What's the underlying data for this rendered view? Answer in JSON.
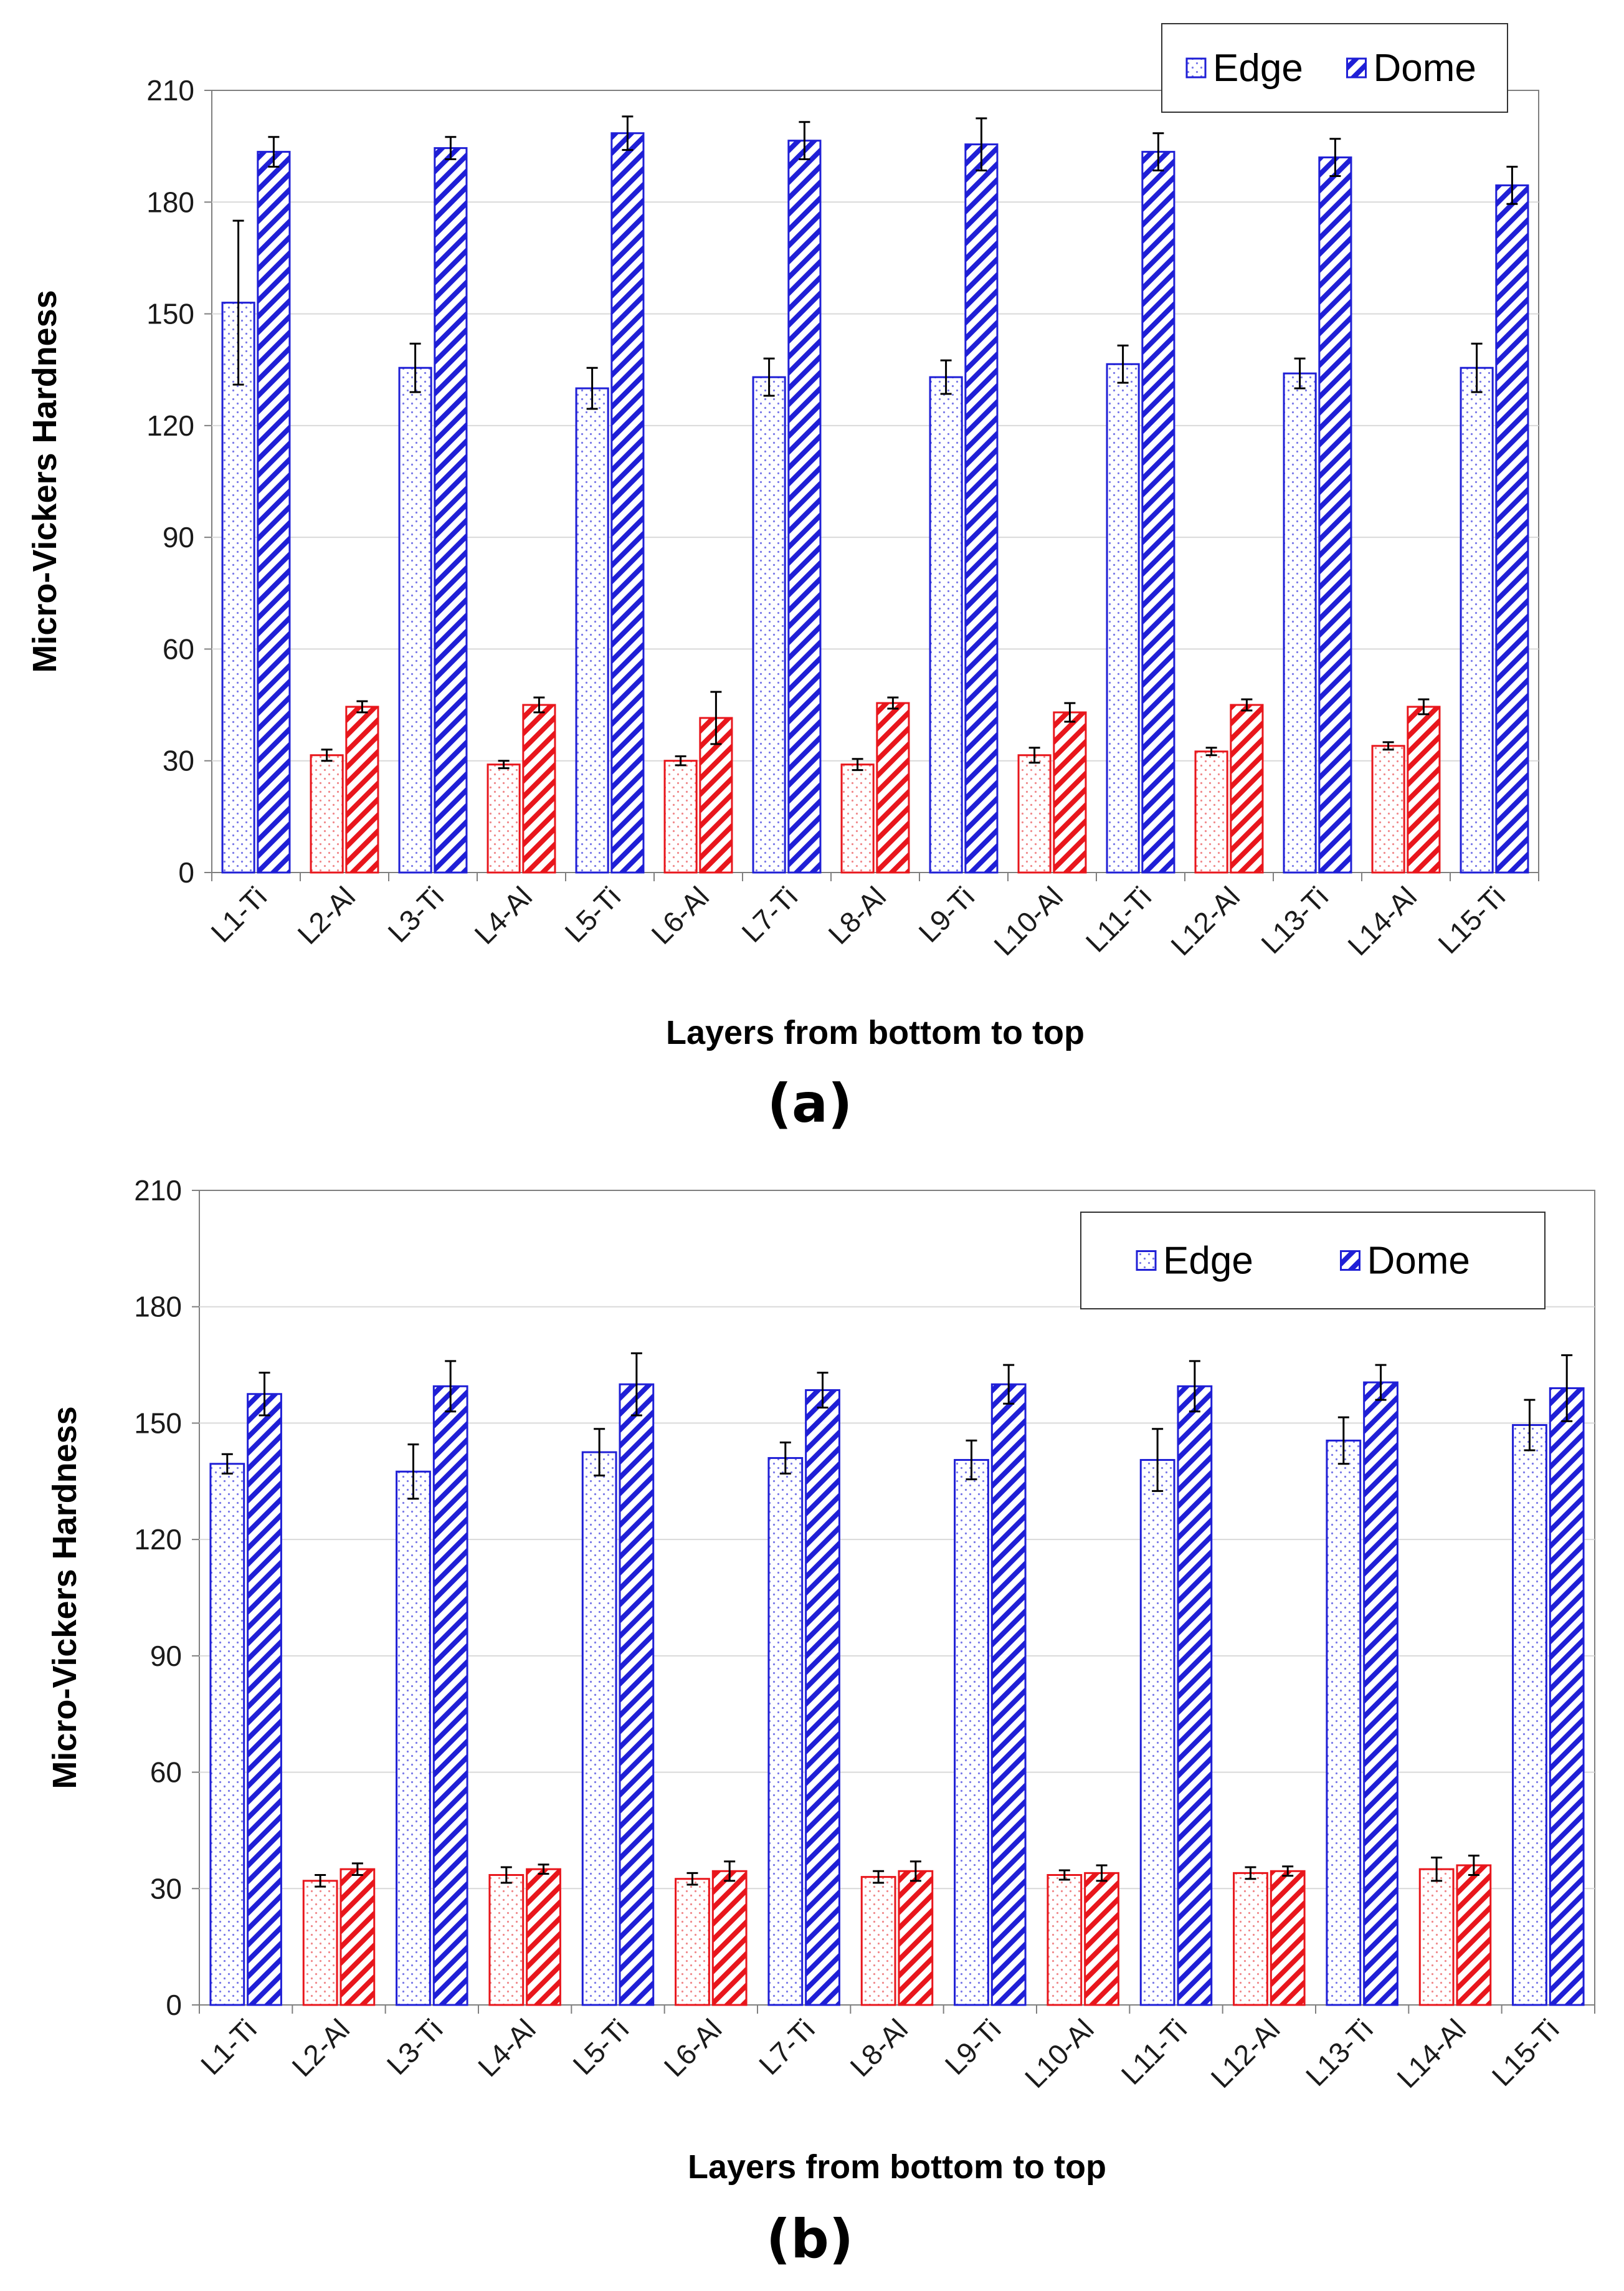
{
  "colors": {
    "ti": "#1f1fd6",
    "al": "#e8161c",
    "grid": "#d9d9d9",
    "axis": "#7f7f7f",
    "errorbar": "#000000"
  },
  "legend": {
    "edge": "Edge",
    "dome": "Dome"
  },
  "chart_data": [
    {
      "type": "bar",
      "panel_label": "(a)",
      "xlabel": "Layers from bottom to top",
      "ylabel": "Micro-Vickers Hardness",
      "ylim": [
        0,
        210
      ],
      "yticks": [
        0,
        30,
        60,
        90,
        120,
        150,
        180,
        210
      ],
      "grid": true,
      "legend_position": "top-right",
      "categories": [
        "L1-Ti",
        "L2-Al",
        "L3-Ti",
        "L4-Al",
        "L5-Ti",
        "L6-Al",
        "L7-Ti",
        "L8-Al",
        "L9-Ti",
        "L10-Al",
        "L11-Ti",
        "L12-Al",
        "L13-Ti",
        "L14-Al",
        "L15-Ti"
      ],
      "series": [
        {
          "name": "Edge",
          "pattern": "dots",
          "values": [
            153,
            31.5,
            135.5,
            29,
            130,
            30,
            133,
            29,
            133,
            31.5,
            136.5,
            32.5,
            134,
            34,
            135.5
          ],
          "errors": [
            22,
            1.5,
            6.5,
            1,
            5.5,
            1.2,
            5,
            1.5,
            4.5,
            2,
            5,
            1,
            4,
            1,
            6.5
          ]
        },
        {
          "name": "Dome",
          "pattern": "diagonal-stripes",
          "values": [
            193.5,
            44.5,
            194.5,
            45,
            198.5,
            41.5,
            196.5,
            45.5,
            195.5,
            43,
            193.5,
            45,
            192,
            44.5,
            184.5
          ],
          "errors": [
            4,
            1.5,
            3,
            2,
            4.5,
            7,
            5,
            1.5,
            7,
            2.5,
            5,
            1.5,
            5,
            2,
            5
          ]
        }
      ]
    },
    {
      "type": "bar",
      "panel_label": "(b)",
      "xlabel": "Layers from bottom to top",
      "ylabel": "Micro-Vickers Hardness",
      "ylim": [
        0,
        210
      ],
      "yticks": [
        0,
        30,
        60,
        90,
        120,
        150,
        180,
        210
      ],
      "grid": true,
      "legend_position": "top-right",
      "categories": [
        "L1-Ti",
        "L2-Al",
        "L3-Ti",
        "L4-Al",
        "L5-Ti",
        "L6-Al",
        "L7-Ti",
        "L8-Al",
        "L9-Ti",
        "L10-Al",
        "L11-Ti",
        "L12-Al",
        "L13-Ti",
        "L14-Al",
        "L15-Ti"
      ],
      "series": [
        {
          "name": "Edge",
          "pattern": "dots",
          "values": [
            139.5,
            32,
            137.5,
            33.5,
            142.5,
            32.5,
            141,
            33,
            140.5,
            33.5,
            140.5,
            34,
            145.5,
            35,
            149.5
          ],
          "errors": [
            2.5,
            1.5,
            7,
            2,
            6,
            1.5,
            4,
            1.5,
            5,
            1.2,
            8,
            1.5,
            6,
            3,
            6.5
          ]
        },
        {
          "name": "Dome",
          "pattern": "diagonal-stripes",
          "values": [
            157.5,
            35,
            159.5,
            35,
            160,
            34.5,
            158.5,
            34.5,
            160,
            34,
            159.5,
            34.5,
            160.5,
            36,
            159
          ],
          "errors": [
            5.5,
            1.5,
            6.5,
            1.2,
            8,
            2.5,
            4.5,
            2.5,
            5,
            2,
            6.5,
            1.2,
            4.5,
            2.5,
            8.5
          ]
        }
      ]
    }
  ]
}
